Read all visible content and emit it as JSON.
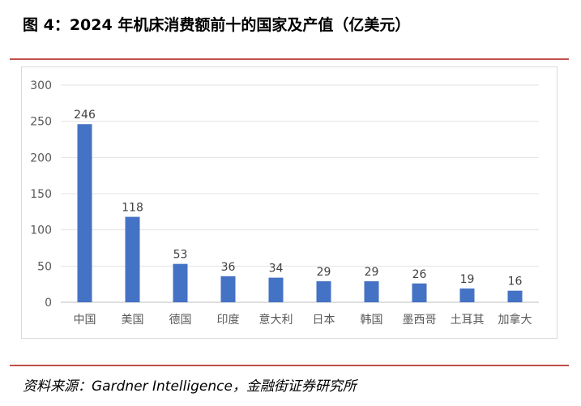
{
  "header": {
    "title": "图 4：2024 年机床消费额前十的国家及产值（亿美元）"
  },
  "footer": {
    "source": "资料来源：Gardner Intelligence，金融街证券研究所"
  },
  "chart_data": {
    "type": "bar",
    "title": "",
    "xlabel": "",
    "ylabel": "",
    "categories": [
      "中国",
      "美国",
      "德国",
      "印度",
      "意大利",
      "日本",
      "韩国",
      "墨西哥",
      "土耳其",
      "加拿大"
    ],
    "values": [
      246,
      118,
      53,
      36,
      34,
      29,
      29,
      26,
      19,
      16
    ],
    "data_labels": [
      "246",
      "118",
      "53",
      "36",
      "34",
      "29",
      "29",
      "26",
      "19",
      "16"
    ],
    "ylim": [
      0,
      300
    ],
    "yticks": [
      0,
      50,
      100,
      150,
      200,
      250,
      300
    ],
    "ytick_labels": [
      "0",
      "50",
      "100",
      "150",
      "200",
      "250",
      "300"
    ],
    "grid": true,
    "legend": "none",
    "bar_color": "#4472c4"
  }
}
